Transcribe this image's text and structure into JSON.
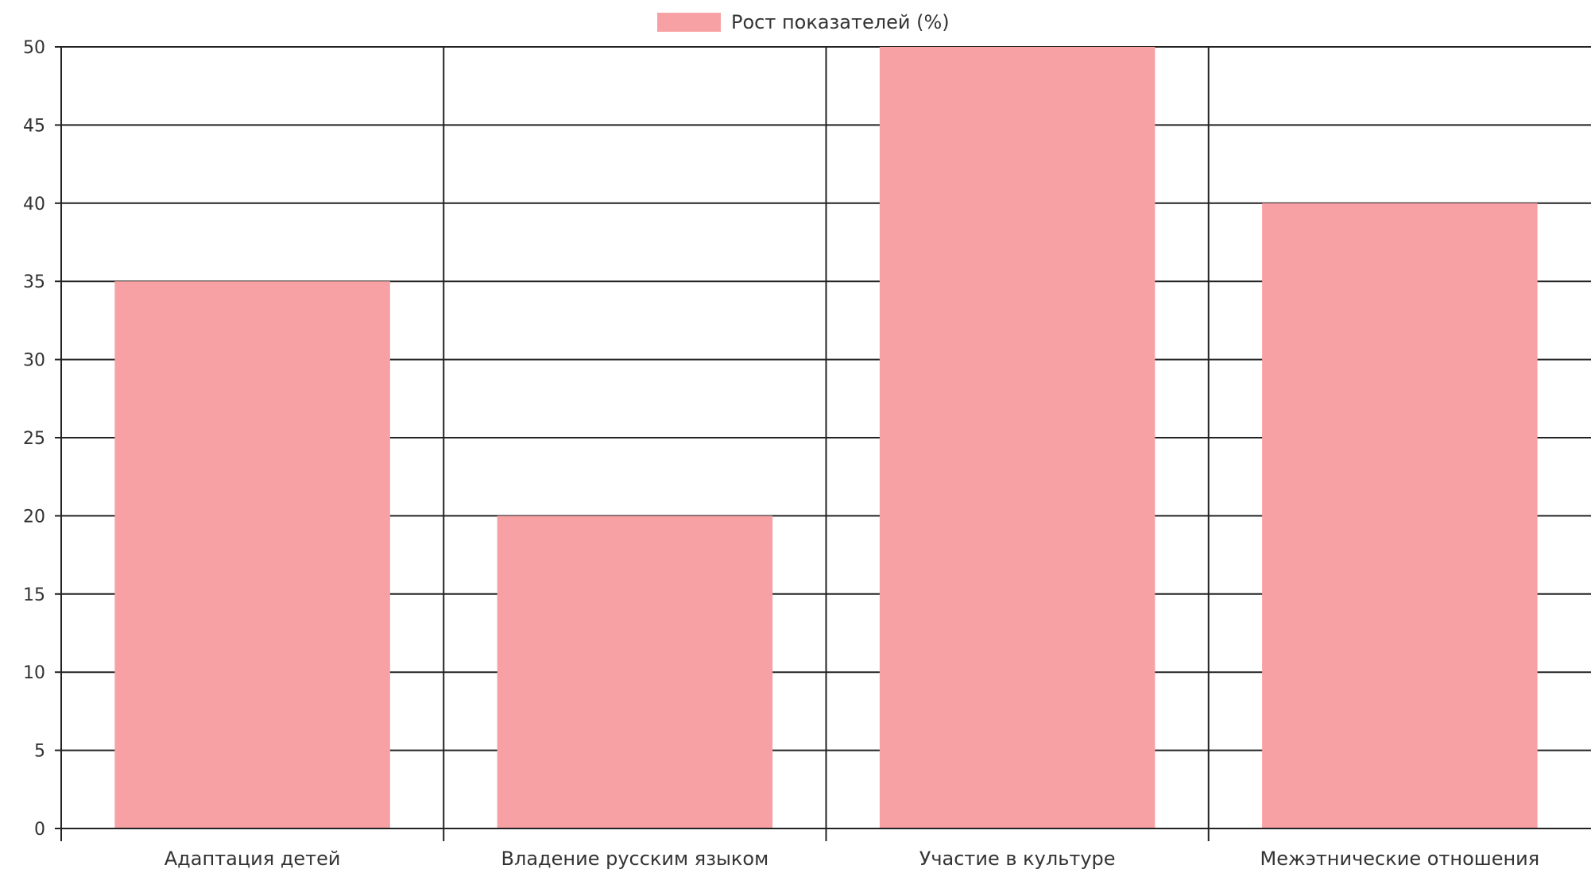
{
  "chart_data": {
    "type": "bar",
    "categories": [
      "Адаптация детей",
      "Владение русским языком",
      "Участие в культуре",
      "Межэтнические отношения"
    ],
    "series": [
      {
        "name": "Рост показателей (%)",
        "values": [
          35,
          20,
          50,
          40
        ],
        "color": "#f7a1a5"
      }
    ],
    "ylim": [
      0,
      50
    ],
    "yticks": [
      0,
      5,
      10,
      15,
      20,
      25,
      30,
      35,
      40,
      45,
      50
    ],
    "grid": true,
    "legend": "top-center"
  }
}
